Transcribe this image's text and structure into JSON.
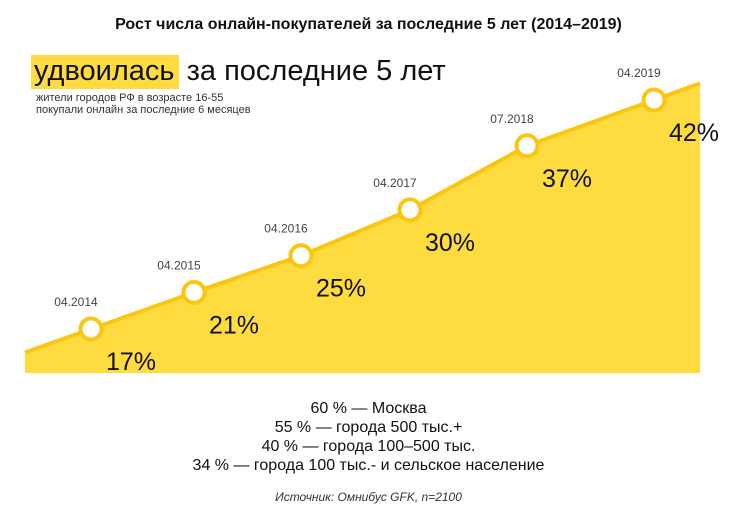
{
  "title": "Рост числа онлайн-покупателей за последние 5 лет (2014–2019)",
  "headline": {
    "highlight": "удвоилась",
    "rest": "за последние 5 лет"
  },
  "subtitle": [
    "жители городов РФ в возрасте 16-55",
    "покупали онлайн за последние 6 месяцев"
  ],
  "colors": {
    "area": "#FEDB3F",
    "highlight": "#FEDB3F",
    "line": "#FBC612",
    "marker_fill": "#FFFFFF"
  },
  "chart_data": {
    "type": "area",
    "x": [
      "04.2014",
      "04.2015",
      "04.2016",
      "04.2017",
      "07.2018",
      "04.2019"
    ],
    "values": [
      17,
      21,
      25,
      30,
      37,
      42
    ],
    "labels": [
      "17%",
      "21%",
      "25%",
      "30%",
      "37%",
      "42%"
    ],
    "unit": "%",
    "grid": false,
    "legend": "none"
  },
  "notes": [
    "60 % — Москва",
    "55 % — города 500 тыс.+",
    "40 % — города 100–500 тыс.",
    "34 % — города 100 тыс.- и сельское население"
  ],
  "source": "Источник: Омнибус GFK, n=2100"
}
